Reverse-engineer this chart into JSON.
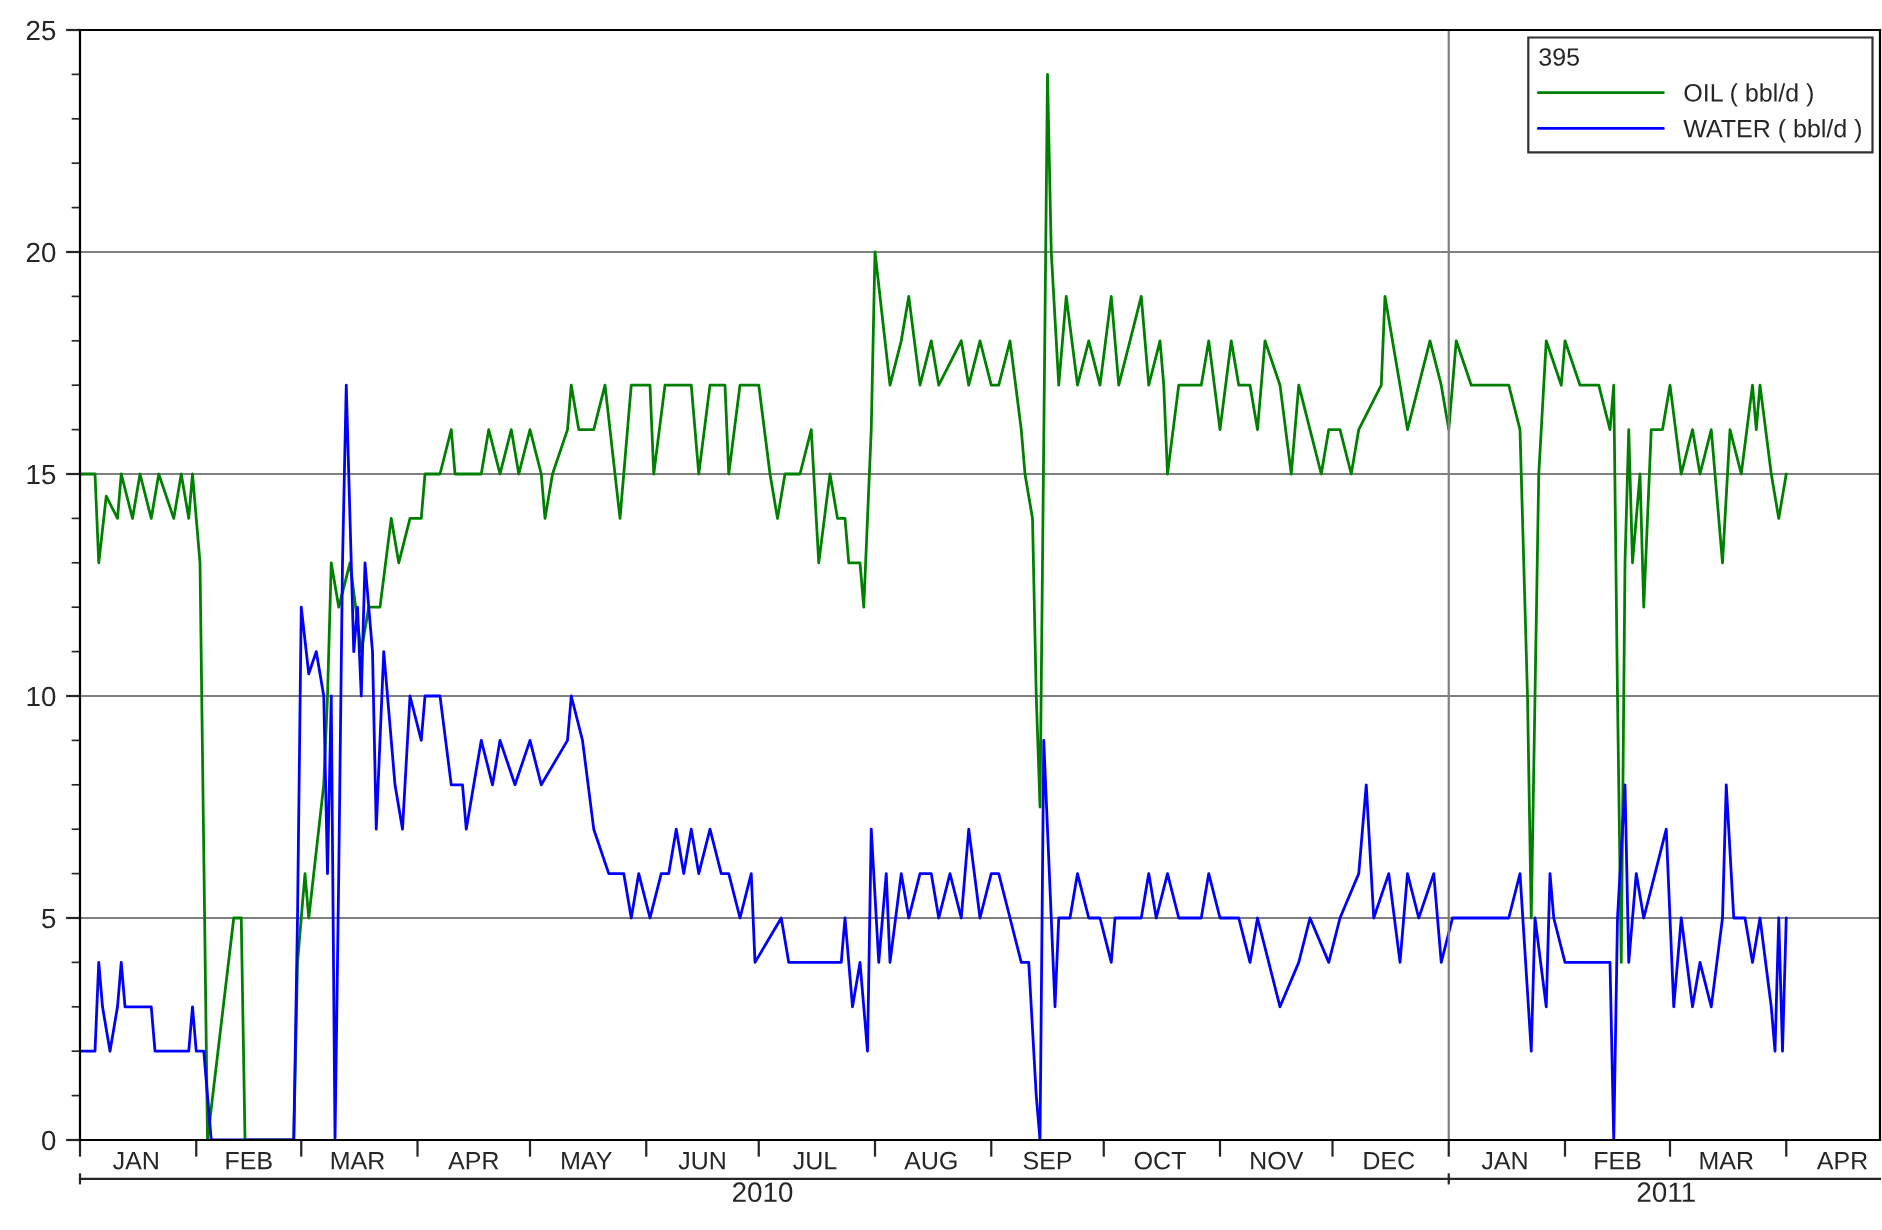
{
  "chart_data": {
    "type": "line",
    "legend_title": "395",
    "legend": "top right",
    "grid": "y",
    "ylim": [
      0,
      25
    ],
    "yticks": [
      0,
      5,
      10,
      15,
      20,
      25
    ],
    "xlim": [
      "2010-01-01",
      "2011-04-26"
    ],
    "xticks": [
      {
        "value": "2010-01-01",
        "label": null
      },
      {
        "value": "2010-01-16",
        "label": "JAN"
      },
      {
        "value": "2010-02-01",
        "label": null
      },
      {
        "value": "2010-02-15",
        "label": "FEB"
      },
      {
        "value": "2010-03-01",
        "label": null
      },
      {
        "value": "2010-03-16",
        "label": "MAR"
      },
      {
        "value": "2010-04-01",
        "label": null
      },
      {
        "value": "2010-04-16",
        "label": "APR"
      },
      {
        "value": "2010-05-01",
        "label": null
      },
      {
        "value": "2010-05-16",
        "label": "MAY"
      },
      {
        "value": "2010-06-01",
        "label": null
      },
      {
        "value": "2010-06-16",
        "label": "JUN"
      },
      {
        "value": "2010-07-01",
        "label": null
      },
      {
        "value": "2010-07-16",
        "label": "JUL"
      },
      {
        "value": "2010-08-01",
        "label": null
      },
      {
        "value": "2010-08-16",
        "label": "AUG"
      },
      {
        "value": "2010-09-01",
        "label": null
      },
      {
        "value": "2010-09-16",
        "label": "SEP"
      },
      {
        "value": "2010-10-01",
        "label": null
      },
      {
        "value": "2010-10-16",
        "label": "OCT"
      },
      {
        "value": "2010-11-01",
        "label": null
      },
      {
        "value": "2010-11-16",
        "label": "NOV"
      },
      {
        "value": "2010-12-01",
        "label": null
      },
      {
        "value": "2010-12-16",
        "label": "DEC"
      },
      {
        "value": "2011-01-01",
        "label": null
      },
      {
        "value": "2011-01-16",
        "label": "JAN"
      },
      {
        "value": "2011-02-01",
        "label": null
      },
      {
        "value": "2011-02-15",
        "label": "FEB"
      },
      {
        "value": "2011-03-01",
        "label": null
      },
      {
        "value": "2011-03-16",
        "label": "MAR"
      },
      {
        "value": "2011-04-01",
        "label": null
      },
      {
        "value": "2011-04-16",
        "label": "APR"
      }
    ],
    "ref_lines": [
      {
        "axis": "x",
        "value": "2011-01-01",
        "color": "#808080"
      }
    ],
    "x2lim": [
      "2010-01-01",
      "2011-04-26"
    ],
    "x2ticks": [
      {
        "value": "2010-01-01",
        "label": null
      },
      {
        "value": "2010-07-02",
        "label": "2010"
      },
      {
        "value": "2011-01-01",
        "label": null
      },
      {
        "value": "2011-02-28",
        "label": "2011"
      }
    ],
    "series": [
      {
        "name": "OIL ( bbl/d )",
        "color": "#008000",
        "x": [
          "2010-01-01",
          "2010-01-05",
          "2010-01-06",
          "2010-01-08",
          "2010-01-11",
          "2010-01-12",
          "2010-01-15",
          "2010-01-17",
          "2010-01-20",
          "2010-01-22",
          "2010-01-26",
          "2010-01-28",
          "2010-01-30",
          "2010-01-31",
          "2010-02-01",
          "2010-02-02",
          "2010-02-04",
          "2010-02-11",
          "2010-02-13",
          "2010-02-14",
          "2010-02-27",
          "2010-02-28",
          "2010-03-02",
          "2010-03-03",
          "2010-03-05",
          "2010-03-07",
          "2010-03-08",
          "2010-03-09",
          "2010-03-11",
          "2010-03-14",
          "2010-03-17",
          "2010-03-19",
          "2010-03-22",
          "2010-03-25",
          "2010-03-27",
          "2010-03-30",
          "2010-04-02",
          "2010-04-03",
          "2010-04-07",
          "2010-04-10",
          "2010-04-11",
          "2010-04-18",
          "2010-04-20",
          "2010-04-23",
          "2010-04-26",
          "2010-04-28",
          "2010-05-01",
          "2010-05-04",
          "2010-05-05",
          "2010-05-07",
          "2010-05-11",
          "2010-05-12",
          "2010-05-14",
          "2010-05-18",
          "2010-05-21",
          "2010-05-25",
          "2010-05-28",
          "2010-06-02",
          "2010-06-03",
          "2010-06-06",
          "2010-06-13",
          "2010-06-15",
          "2010-06-18",
          "2010-06-22",
          "2010-06-23",
          "2010-06-26",
          "2010-07-01",
          "2010-07-04",
          "2010-07-06",
          "2010-07-08",
          "2010-07-12",
          "2010-07-15",
          "2010-07-17",
          "2010-07-20",
          "2010-07-22",
          "2010-07-24",
          "2010-07-25",
          "2010-07-28",
          "2010-07-29",
          "2010-07-31",
          "2010-08-01",
          "2010-08-05",
          "2010-08-08",
          "2010-08-10",
          "2010-08-13",
          "2010-08-16",
          "2010-08-18",
          "2010-08-24",
          "2010-08-26",
          "2010-08-29",
          "2010-09-01",
          "2010-09-03",
          "2010-09-06",
          "2010-09-09",
          "2010-09-10",
          "2010-09-12",
          "2010-09-13",
          "2010-09-14",
          "2010-09-16",
          "2010-09-17",
          "2010-09-19",
          "2010-09-21",
          "2010-09-24",
          "2010-09-27",
          "2010-09-30",
          "2010-10-03",
          "2010-10-05",
          "2010-10-08",
          "2010-10-11",
          "2010-10-13",
          "2010-10-16",
          "2010-10-17",
          "2010-10-18",
          "2010-10-21",
          "2010-10-27",
          "2010-10-29",
          "2010-11-01",
          "2010-11-04",
          "2010-11-06",
          "2010-11-09",
          "2010-11-11",
          "2010-11-13",
          "2010-11-17",
          "2010-11-20",
          "2010-11-22",
          "2010-11-25",
          "2010-11-28",
          "2010-11-30",
          "2010-12-03",
          "2010-12-06",
          "2010-12-08",
          "2010-12-14",
          "2010-12-15",
          "2010-12-19",
          "2010-12-21",
          "2010-12-24",
          "2010-12-27",
          "2010-12-30",
          "2011-01-01",
          "2011-01-03",
          "2011-01-07",
          "2011-01-17",
          "2011-01-20",
          "2011-01-22",
          "2011-01-23",
          "2011-01-24",
          "2011-01-25",
          "2011-01-27",
          "2011-01-31",
          "2011-02-01",
          "2011-02-05",
          "2011-02-10",
          "2011-02-13",
          "2011-02-14",
          "2011-02-15",
          "2011-02-16",
          "2011-02-17",
          "2011-02-18",
          "2011-02-19",
          "2011-02-21",
          "2011-02-22",
          "2011-02-24",
          "2011-02-27",
          "2011-03-01",
          "2011-03-04",
          "2011-03-07",
          "2011-03-09",
          "2011-03-12",
          "2011-03-15",
          "2011-03-17",
          "2011-03-20",
          "2011-03-23",
          "2011-03-24",
          "2011-03-25",
          "2011-03-28",
          "2011-03-30",
          "2011-04-01"
        ],
        "values": [
          15,
          15,
          13,
          14.5,
          14,
          15,
          14,
          15,
          14,
          15,
          14,
          15,
          14,
          15,
          14,
          13,
          0,
          5,
          5,
          0,
          0,
          4,
          6,
          5,
          6.5,
          8,
          10,
          13,
          12,
          13,
          11,
          12,
          12,
          14,
          13,
          14,
          14,
          15,
          15,
          16,
          15,
          15,
          16,
          15,
          16,
          15,
          16,
          15,
          14,
          15,
          16,
          17,
          16,
          16,
          17,
          14,
          17,
          17,
          15,
          17,
          17,
          15,
          17,
          17,
          15,
          17,
          17,
          15,
          14,
          15,
          15,
          16,
          13,
          15,
          14,
          14,
          13,
          13,
          12,
          16,
          20,
          17,
          18,
          19,
          17,
          18,
          17,
          18,
          17,
          18,
          17,
          17,
          18,
          16,
          15,
          14,
          10,
          7.5,
          24,
          20,
          17,
          19,
          17,
          18,
          17,
          19,
          17,
          18,
          19,
          17,
          18,
          17,
          15,
          17,
          17,
          18,
          16,
          18,
          17,
          17,
          16,
          18,
          17,
          15,
          17,
          16,
          15,
          16,
          16,
          15,
          16,
          17,
          19,
          17,
          16,
          17,
          18,
          17,
          16,
          18,
          17,
          17,
          16,
          10,
          5,
          10,
          15,
          18,
          17,
          18,
          17,
          17,
          16,
          17,
          10,
          4,
          13,
          16,
          13,
          15,
          12,
          16,
          16,
          17,
          15,
          16,
          15,
          16,
          13,
          16,
          15,
          17,
          16,
          17,
          15,
          14,
          15
        ]
      },
      {
        "name": "WATER ( bbl/d )",
        "color": "#0000ff",
        "x": [
          "2010-01-01",
          "2010-01-05",
          "2010-01-06",
          "2010-01-07",
          "2010-01-09",
          "2010-01-11",
          "2010-01-12",
          "2010-01-13",
          "2010-01-20",
          "2010-01-21",
          "2010-01-30",
          "2010-01-31",
          "2010-02-01",
          "2010-02-03",
          "2010-02-05",
          "2010-02-27",
          "2010-02-28",
          "2010-03-01",
          "2010-03-03",
          "2010-03-05",
          "2010-03-07",
          "2010-03-08",
          "2010-03-09",
          "2010-03-10",
          "2010-03-11",
          "2010-03-12",
          "2010-03-13",
          "2010-03-15",
          "2010-03-16",
          "2010-03-17",
          "2010-03-18",
          "2010-03-20",
          "2010-03-21",
          "2010-03-23",
          "2010-03-25",
          "2010-03-26",
          "2010-03-28",
          "2010-03-30",
          "2010-04-02",
          "2010-04-03",
          "2010-04-07",
          "2010-04-10",
          "2010-04-13",
          "2010-04-14",
          "2010-04-16",
          "2010-04-18",
          "2010-04-21",
          "2010-04-23",
          "2010-04-27",
          "2010-05-01",
          "2010-05-04",
          "2010-05-11",
          "2010-05-12",
          "2010-05-15",
          "2010-05-18",
          "2010-05-22",
          "2010-05-26",
          "2010-05-28",
          "2010-05-30",
          "2010-06-02",
          "2010-06-05",
          "2010-06-07",
          "2010-06-09",
          "2010-06-11",
          "2010-06-13",
          "2010-06-15",
          "2010-06-18",
          "2010-06-21",
          "2010-06-23",
          "2010-06-26",
          "2010-06-29",
          "2010-06-30",
          "2010-07-07",
          "2010-07-09",
          "2010-07-15",
          "2010-07-23",
          "2010-07-24",
          "2010-07-26",
          "2010-07-28",
          "2010-07-30",
          "2010-07-31",
          "2010-08-02",
          "2010-08-04",
          "2010-08-05",
          "2010-08-08",
          "2010-08-10",
          "2010-08-13",
          "2010-08-16",
          "2010-08-18",
          "2010-08-21",
          "2010-08-24",
          "2010-08-26",
          "2010-08-29",
          "2010-09-01",
          "2010-09-03",
          "2010-09-06",
          "2010-09-09",
          "2010-09-11",
          "2010-09-13",
          "2010-09-14",
          "2010-09-15",
          "2010-09-16",
          "2010-09-18",
          "2010-09-19",
          "2010-09-22",
          "2010-09-24",
          "2010-09-27",
          "2010-09-30",
          "2010-10-03",
          "2010-10-04",
          "2010-10-11",
          "2010-10-13",
          "2010-10-15",
          "2010-10-18",
          "2010-10-21",
          "2010-10-27",
          "2010-10-29",
          "2010-11-01",
          "2010-11-06",
          "2010-11-09",
          "2010-11-11",
          "2010-11-17",
          "2010-11-22",
          "2010-11-25",
          "2010-11-30",
          "2010-12-03",
          "2010-12-08",
          "2010-12-10",
          "2010-12-12",
          "2010-12-16",
          "2010-12-19",
          "2010-12-21",
          "2010-12-24",
          "2010-12-28",
          "2010-12-30",
          "2011-01-02",
          "2011-01-17",
          "2011-01-20",
          "2011-01-23",
          "2011-01-24",
          "2011-01-27",
          "2011-01-28",
          "2011-01-29",
          "2011-02-01",
          "2011-02-13",
          "2011-02-14",
          "2011-02-15",
          "2011-02-17",
          "2011-02-18",
          "2011-02-20",
          "2011-02-22",
          "2011-02-25",
          "2011-02-28",
          "2011-03-02",
          "2011-03-04",
          "2011-03-07",
          "2011-03-09",
          "2011-03-12",
          "2011-03-15",
          "2011-03-16",
          "2011-03-18",
          "2011-03-21",
          "2011-03-23",
          "2011-03-25",
          "2011-03-28",
          "2011-03-29",
          "2011-03-30",
          "2011-03-31",
          "2011-04-01"
        ],
        "values": [
          2,
          2,
          4,
          3,
          2,
          3,
          4,
          3,
          3,
          2,
          2,
          3,
          2,
          2,
          0,
          0,
          5,
          12,
          10.5,
          11,
          10,
          6,
          10,
          0,
          6,
          13,
          17,
          11,
          12,
          10,
          13,
          11,
          7,
          11,
          9,
          8,
          7,
          10,
          9,
          10,
          10,
          8,
          8,
          7,
          8,
          9,
          8,
          9,
          8,
          9,
          8,
          9,
          10,
          9,
          7,
          6,
          6,
          5,
          6,
          5,
          6,
          6,
          7,
          6,
          7,
          6,
          7,
          6,
          6,
          5,
          6,
          4,
          5,
          4,
          4,
          4,
          5,
          3,
          4,
          2,
          7,
          4,
          6,
          4,
          6,
          5,
          6,
          6,
          5,
          6,
          5,
          7,
          5,
          6,
          6,
          5,
          4,
          4,
          1,
          0,
          9,
          7,
          3,
          5,
          5,
          6,
          5,
          5,
          4,
          5,
          5,
          6,
          5,
          6,
          5,
          5,
          6,
          5,
          5,
          4,
          5,
          3,
          4,
          5,
          4,
          5,
          6,
          8,
          5,
          6,
          4,
          6,
          5,
          6,
          4,
          5,
          5,
          6,
          2,
          5,
          3,
          6,
          5,
          4,
          4,
          0,
          5,
          8,
          4,
          6,
          5,
          6,
          7,
          3,
          5,
          3,
          4,
          3,
          5,
          8,
          5,
          5,
          4,
          5,
          3,
          2,
          5,
          2,
          5
        ]
      }
    ]
  }
}
